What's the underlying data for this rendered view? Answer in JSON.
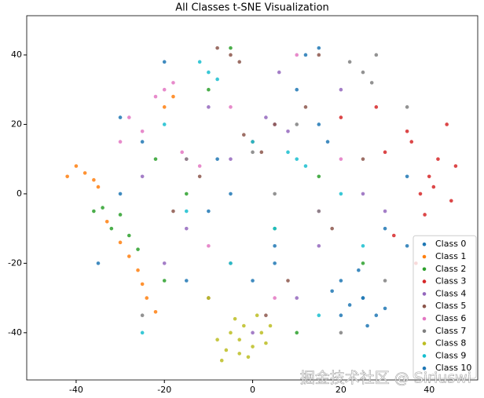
{
  "chart_data": {
    "type": "scatter",
    "title": "All Classes t-SNE Visualization",
    "xlim": [
      -51.2,
      51
    ],
    "ylim": [
      -53.6,
      51.3
    ],
    "xticks": [
      -40,
      -20,
      0,
      20,
      40
    ],
    "yticks": [
      -40,
      -20,
      0,
      20,
      40
    ],
    "legend": "lower right",
    "watermark": "掘金技术社区 @ Siriuswi",
    "series": [
      {
        "name": "Class 0",
        "color": "#1f77b4",
        "x": [
          22,
          25,
          28,
          18,
          30,
          26,
          20,
          15,
          12,
          -8,
          5,
          -30,
          35,
          24,
          17
        ],
        "values": [
          -32,
          -30,
          -35,
          -28,
          -33,
          -38,
          -25,
          42,
          40,
          10,
          -20,
          0,
          -15,
          -22,
          15
        ]
      },
      {
        "name": "Class 1",
        "color": "#ff7f0e",
        "x": [
          -38,
          -36,
          -40,
          -35,
          -42,
          -28,
          -26,
          -30,
          -24,
          -22,
          -20,
          -25,
          -33,
          -18,
          -10
        ],
        "values": [
          6,
          4,
          8,
          2,
          5,
          -18,
          -22,
          -14,
          -30,
          -34,
          25,
          -26,
          -8,
          28,
          -30
        ]
      },
      {
        "name": "Class 2",
        "color": "#2ca02c",
        "x": [
          -32,
          -30,
          -28,
          -34,
          -26,
          -20,
          -10,
          5,
          15,
          -15,
          -36,
          25,
          -5,
          10,
          -22
        ],
        "values": [
          -10,
          -6,
          -12,
          -4,
          -16,
          -25,
          30,
          -10,
          5,
          0,
          -5,
          -20,
          42,
          -40,
          10
        ]
      },
      {
        "name": "Class 3",
        "color": "#d62728",
        "x": [
          40,
          42,
          38,
          45,
          36,
          44,
          35,
          30,
          39,
          46,
          32,
          28,
          20,
          41,
          37
        ],
        "values": [
          5,
          10,
          0,
          -2,
          15,
          20,
          18,
          12,
          -6,
          8,
          -12,
          25,
          22,
          2,
          -20
        ]
      },
      {
        "name": "Class 4",
        "color": "#9467bd",
        "x": [
          5,
          8,
          3,
          -5,
          -15,
          10,
          20,
          -25,
          30,
          0,
          15,
          -10,
          25,
          -20,
          6
        ],
        "values": [
          20,
          18,
          22,
          10,
          -10,
          -30,
          30,
          5,
          -5,
          -40,
          -15,
          25,
          0,
          -20,
          35
        ]
      },
      {
        "name": "Class 5",
        "color": "#8c564b",
        "x": [
          0,
          2,
          -2,
          5,
          -5,
          -8,
          -3,
          12,
          18,
          -12,
          8,
          25,
          -18,
          3,
          15
        ],
        "values": [
          15,
          12,
          17,
          20,
          40,
          42,
          38,
          25,
          -10,
          5,
          -25,
          10,
          -5,
          -35,
          40
        ]
      },
      {
        "name": "Class 6",
        "color": "#e377c2",
        "x": [
          -20,
          -22,
          -18,
          -15,
          -25,
          -12,
          -28,
          -10,
          5,
          15,
          -5,
          10,
          -30,
          20,
          -16
        ],
        "values": [
          30,
          28,
          32,
          10,
          18,
          8,
          22,
          -15,
          -30,
          -5,
          25,
          40,
          15,
          10,
          12
        ]
      },
      {
        "name": "Class 7",
        "color": "#7f7f7f",
        "x": [
          25,
          27,
          22,
          28,
          10,
          -5,
          15,
          -15,
          30,
          5,
          -25,
          35,
          20,
          -10,
          0
        ],
        "values": [
          35,
          32,
          38,
          40,
          20,
          -20,
          -5,
          10,
          -25,
          0,
          -35,
          25,
          -40,
          -30,
          12
        ]
      },
      {
        "name": "Class 8",
        "color": "#bcbd22",
        "x": [
          -3,
          -5,
          0,
          -2,
          -6,
          -1,
          2,
          -4,
          -8,
          3,
          -10,
          4,
          -7,
          1,
          -3
        ],
        "values": [
          -42,
          -40,
          -44,
          -38,
          -45,
          -47,
          -40,
          -36,
          -42,
          -43,
          -30,
          -38,
          -48,
          -35,
          -46
        ]
      },
      {
        "name": "Class 9",
        "color": "#17becf",
        "x": [
          -10,
          -8,
          -12,
          10,
          12,
          8,
          -5,
          15,
          -15,
          0,
          20,
          -20,
          5,
          25,
          -25
        ],
        "values": [
          35,
          33,
          38,
          10,
          8,
          12,
          -20,
          -35,
          -5,
          15,
          0,
          20,
          -10,
          -15,
          -40
        ]
      },
      {
        "name": "Class 10",
        "color": "#1f77b4",
        "x": [
          -5,
          5,
          15,
          -15,
          25,
          -25,
          35,
          -35,
          10,
          -10,
          20,
          0,
          -20,
          30,
          -30
        ],
        "values": [
          0,
          -15,
          20,
          -25,
          -30,
          15,
          5,
          -20,
          30,
          -5,
          -35,
          -25,
          38,
          -10,
          22
        ]
      }
    ]
  }
}
